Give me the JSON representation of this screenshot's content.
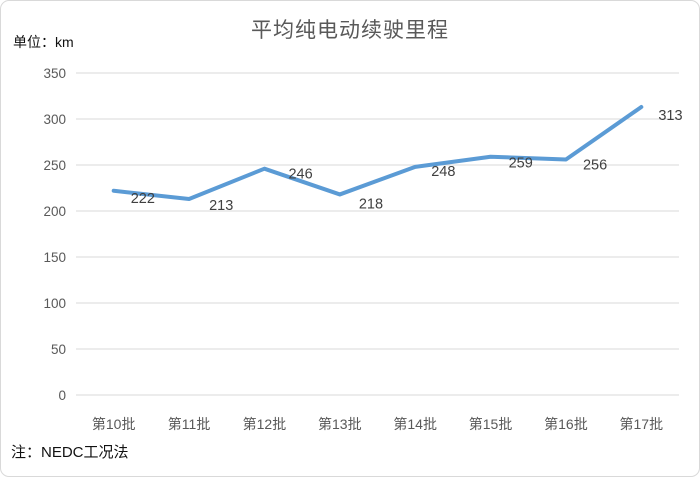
{
  "page": {
    "title": "平均纯电动续驶里程",
    "unit_label": "单位：km",
    "note": "注：NEDC工况法"
  },
  "chart_data": {
    "type": "line",
    "title": "平均纯电动续驶里程",
    "unit_label": "单位：km",
    "note": "注：NEDC工况法",
    "categories": [
      "第10批",
      "第11批",
      "第12批",
      "第13批",
      "第14批",
      "第15批",
      "第16批",
      "第17批"
    ],
    "values": [
      222,
      213,
      246,
      218,
      248,
      259,
      256,
      313
    ],
    "xlabel": "",
    "ylabel": "",
    "ylim": [
      0,
      350
    ],
    "yticks": [
      0,
      50,
      100,
      150,
      200,
      250,
      300,
      350
    ],
    "grid": true,
    "legend": false,
    "colors": {
      "line": "#5B9BD5",
      "data_label": "#404040",
      "axis_label": "#595959",
      "gridline": "#D9D9D9",
      "title": "#595959",
      "text": "#111111"
    }
  }
}
